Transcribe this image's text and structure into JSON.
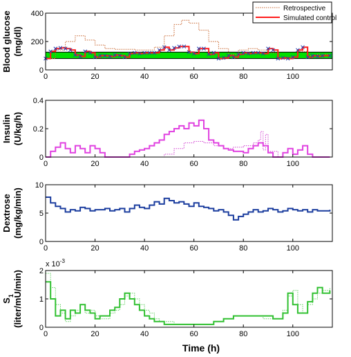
{
  "figure": {
    "xlabel": "Time (h)",
    "xlim": [
      0,
      116
    ],
    "xticks": [
      0,
      20,
      40,
      60,
      80,
      100
    ]
  },
  "chart_data": [
    {
      "type": "line",
      "id": "glucose",
      "ylabel_lines": [
        "Blood glucose",
        "(mg/dl)"
      ],
      "ylim": [
        0,
        400
      ],
      "yticks": [
        0,
        200,
        400
      ],
      "target_band": {
        "range": [
          80,
          125
        ],
        "color": "#00e000"
      },
      "legend": {
        "placement": "top-right",
        "entries": [
          "Retrospective",
          "Simulated control"
        ]
      },
      "series": [
        {
          "name": "Retrospective",
          "color": "#c8642d",
          "style": "dotted",
          "x": [
            0,
            4,
            8,
            12,
            16,
            20,
            24,
            28,
            32,
            36,
            40,
            44,
            48,
            52,
            55,
            58,
            62,
            66,
            70,
            74,
            78,
            82,
            86,
            90,
            94,
            98,
            102,
            106,
            110,
            115
          ],
          "y": [
            80,
            140,
            200,
            240,
            210,
            175,
            150,
            145,
            145,
            140,
            140,
            160,
            240,
            320,
            350,
            330,
            280,
            200,
            150,
            110,
            140,
            150,
            140,
            120,
            80,
            90,
            130,
            100,
            110,
            110
          ]
        },
        {
          "name": "Simulated control",
          "color": "#ff1a1a",
          "style": "solid",
          "x": [
            0,
            2,
            4,
            6,
            8,
            10,
            12,
            14,
            16,
            18,
            20,
            22,
            24,
            26,
            28,
            30,
            32,
            34,
            36,
            38,
            40,
            42,
            44,
            46,
            48,
            50,
            52,
            54,
            56,
            58,
            60,
            62,
            64,
            66,
            68,
            70,
            72,
            74,
            76,
            78,
            80,
            82,
            84,
            86,
            88,
            90,
            92,
            94,
            96,
            98,
            100,
            102,
            104,
            106,
            108,
            110,
            112,
            115
          ],
          "y": [
            80,
            130,
            150,
            155,
            150,
            140,
            105,
            95,
            130,
            120,
            90,
            100,
            100,
            95,
            105,
            100,
            90,
            115,
            120,
            115,
            120,
            120,
            120,
            140,
            160,
            140,
            155,
            165,
            165,
            125,
            115,
            150,
            150,
            110,
            120,
            80,
            85,
            100,
            90,
            110,
            120,
            115,
            120,
            120,
            115,
            150,
            140,
            80,
            85,
            80,
            90,
            140,
            160,
            90,
            100,
            95,
            100,
            100
          ]
        }
      ]
    },
    {
      "type": "line",
      "id": "insulin",
      "ylabel_lines": [
        "Insulin",
        "(U/kg/h)"
      ],
      "ylim": [
        0,
        0.4
      ],
      "yticks": [
        0,
        0.2,
        0.4
      ],
      "series": [
        {
          "name": "Retrospective",
          "color": "#d040d0",
          "style": "dotted",
          "x": [
            0,
            45,
            48,
            52,
            56,
            60,
            64,
            68,
            72,
            76,
            80,
            84,
            86,
            87,
            88,
            89,
            90,
            94,
            115
          ],
          "y": [
            0,
            0,
            0.02,
            0.06,
            0.1,
            0.11,
            0.1,
            0.08,
            0.06,
            0.07,
            0.08,
            0.1,
            0.12,
            0.18,
            0.05,
            0.16,
            0.04,
            0,
            0
          ]
        },
        {
          "name": "Simulated control",
          "color": "#e040e0",
          "style": "solid",
          "x": [
            0,
            2,
            4,
            6,
            8,
            10,
            12,
            14,
            16,
            18,
            20,
            22,
            24,
            26,
            28,
            30,
            32,
            34,
            36,
            38,
            40,
            42,
            44,
            46,
            48,
            50,
            52,
            54,
            56,
            58,
            60,
            62,
            64,
            66,
            68,
            70,
            72,
            74,
            76,
            78,
            80,
            82,
            84,
            86,
            88,
            90,
            92,
            94,
            96,
            98,
            100,
            102,
            104,
            106,
            108,
            115
          ],
          "y": [
            0,
            0.04,
            0.07,
            0.1,
            0.06,
            0.03,
            0.08,
            0.06,
            0.03,
            0.08,
            0.06,
            0.03,
            0,
            0,
            0,
            0,
            0,
            0.02,
            0.04,
            0.05,
            0.06,
            0.08,
            0.1,
            0.12,
            0.16,
            0.18,
            0.2,
            0.22,
            0.2,
            0.24,
            0.22,
            0.26,
            0.2,
            0.12,
            0.1,
            0.08,
            0.06,
            0.05,
            0.04,
            0.04,
            0.03,
            0.06,
            0.08,
            0.1,
            0.08,
            0.03,
            0,
            0,
            0.03,
            0.06,
            0.02,
            0.05,
            0.08,
            0.02,
            0,
            0
          ]
        }
      ]
    },
    {
      "type": "line",
      "id": "dextrose",
      "ylabel_lines": [
        "Dextrose",
        "(mg/kg/min)"
      ],
      "ylim": [
        0,
        10
      ],
      "yticks": [
        0,
        5,
        10
      ],
      "series": [
        {
          "color": "#1a3c9e",
          "style": "solid",
          "x": [
            0,
            2,
            4,
            6,
            8,
            10,
            12,
            14,
            16,
            18,
            20,
            22,
            24,
            26,
            28,
            30,
            32,
            34,
            36,
            38,
            40,
            42,
            44,
            46,
            48,
            50,
            52,
            54,
            56,
            58,
            60,
            62,
            64,
            66,
            68,
            70,
            72,
            74,
            76,
            78,
            80,
            82,
            84,
            86,
            88,
            90,
            92,
            94,
            96,
            98,
            100,
            102,
            104,
            106,
            108,
            110,
            112,
            115
          ],
          "y": [
            7.8,
            6.8,
            6.2,
            5.8,
            5.2,
            5.6,
            5.4,
            6,
            5.8,
            5.4,
            5.6,
            5.6,
            5.8,
            5.4,
            5.6,
            5.8,
            5.2,
            5.8,
            6.4,
            6,
            5.8,
            6.4,
            7,
            6.6,
            7.6,
            7.2,
            6.8,
            7,
            6.6,
            6.2,
            6.8,
            6.2,
            6,
            5.8,
            5.4,
            5.6,
            5.2,
            4.6,
            3.8,
            4.4,
            4.8,
            5.2,
            5.6,
            5.2,
            5.4,
            5.8,
            5.6,
            5.2,
            5.4,
            5.8,
            5.6,
            5.4,
            5.6,
            5.2,
            5.6,
            5.4,
            5.4,
            5.6
          ]
        }
      ]
    },
    {
      "type": "line",
      "id": "si",
      "ylabel_lines": [
        "S1",
        "(liter/mU/min)"
      ],
      "ylim": [
        0,
        0.002
      ],
      "yticks": [
        0,
        1,
        2
      ],
      "scale_label": "x 10-3",
      "series": [
        {
          "name": "Retrospective",
          "color": "#60d060",
          "style": "dotted",
          "x": [
            0,
            2,
            4,
            6,
            8,
            10,
            12,
            14,
            16,
            18,
            20,
            22,
            24,
            26,
            28,
            30,
            32,
            34,
            36,
            38,
            40,
            42,
            44,
            46,
            48,
            50,
            52,
            54,
            56,
            58,
            60,
            64,
            68,
            72,
            76,
            80,
            84,
            88,
            92,
            96,
            98,
            100,
            102,
            104,
            106,
            108,
            110,
            112,
            115
          ],
          "y": [
            0.0019,
            0.0014,
            0.0008,
            0.0005,
            0.0002,
            0.0004,
            0.0006,
            0.0008,
            0.0005,
            0.0006,
            0.0004,
            0.0003,
            0.0003,
            0.0005,
            0.0006,
            0.0008,
            0.0011,
            0.0012,
            0.001,
            0.0008,
            0.0006,
            0.0005,
            0.0003,
            0.0002,
            0.0002,
            0.0002,
            0.0001,
            0.0001,
            0.0001,
            0.0001,
            0.0001,
            0.0001,
            0.0002,
            0.0003,
            0.0004,
            0.0004,
            0.0004,
            0.0003,
            0.0003,
            0.0006,
            0.0011,
            0.0013,
            0.0008,
            0.0005,
            0.0008,
            0.001,
            0.0012,
            0.0013,
            0.0014
          ]
        },
        {
          "name": "Simulated control",
          "color": "#30c030",
          "style": "solid",
          "x": [
            0,
            2,
            4,
            6,
            8,
            10,
            12,
            14,
            16,
            18,
            20,
            22,
            24,
            26,
            28,
            30,
            32,
            34,
            36,
            38,
            40,
            42,
            44,
            46,
            48,
            50,
            52,
            54,
            56,
            58,
            60,
            64,
            68,
            72,
            76,
            80,
            84,
            88,
            92,
            96,
            98,
            100,
            102,
            104,
            106,
            108,
            110,
            112,
            115
          ],
          "y": [
            0.0016,
            0.001,
            0.0004,
            0.0006,
            0.0003,
            0.0006,
            0.0005,
            0.0008,
            0.0006,
            0.0005,
            0.0003,
            0.0004,
            0.0004,
            0.0006,
            0.0007,
            0.001,
            0.0012,
            0.001,
            0.0008,
            0.0006,
            0.0004,
            0.0003,
            0.0002,
            0.0002,
            0.0001,
            0.0001,
            0.0001,
            0.0001,
            0.0001,
            0.0001,
            0.0001,
            0.0001,
            0.0002,
            0.0003,
            0.0004,
            0.0004,
            0.0004,
            0.0004,
            0.0003,
            0.0005,
            0.0012,
            0.0008,
            0.0005,
            0.0005,
            0.0009,
            0.0012,
            0.0014,
            0.0012,
            0.0013
          ]
        }
      ]
    }
  ]
}
